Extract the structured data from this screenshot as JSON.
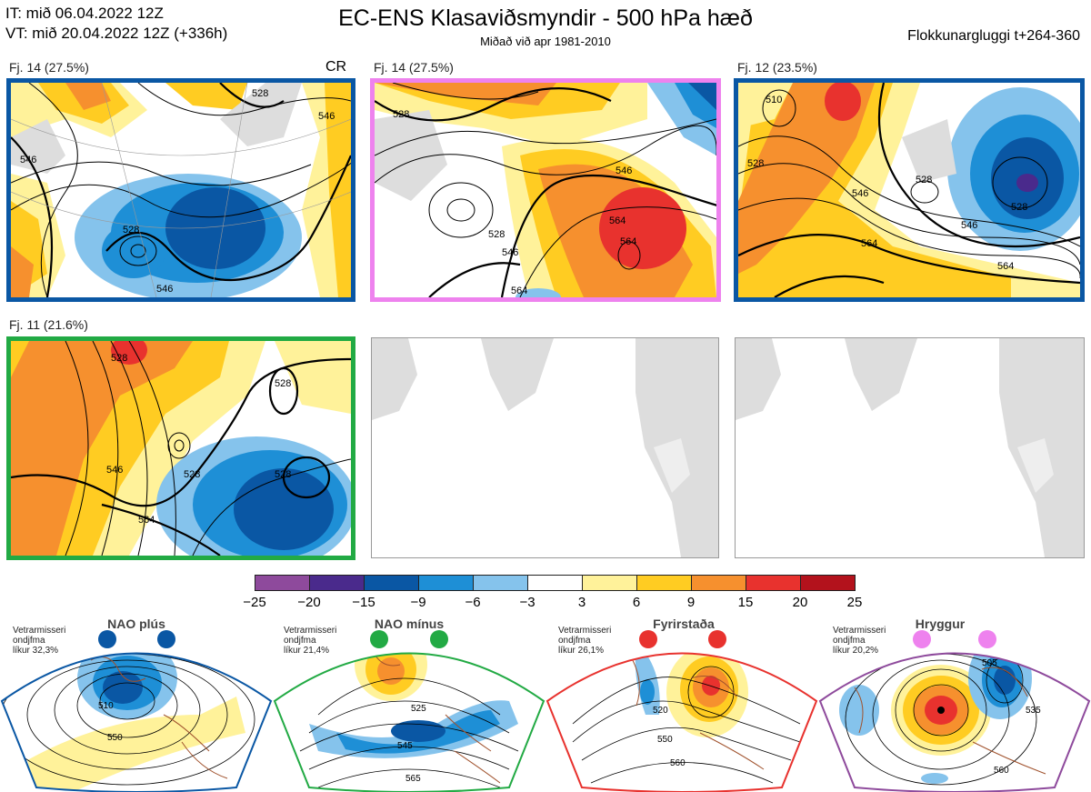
{
  "header": {
    "it_line": "IT: mið 06.04.2022 12Z",
    "vt_line": "VT: mið 20.04.2022 12Z  (+336h)",
    "title": "EC-ENS Klasaviðsmyndir - 500 hPa hæð",
    "subtitle": "Miðað við apr 1981-2010",
    "window": "Flokkunargluggi t+264-360"
  },
  "clusters": [
    {
      "label": "Fj. 14 (27.5%)",
      "border_color": "#0a57a4",
      "contours": [
        "528",
        "546",
        "546",
        "528",
        "546"
      ]
    },
    {
      "label": "Fj. 14 (27.5%)",
      "border_color": "#ee82ee",
      "contours": [
        "528",
        "528",
        "546",
        "564",
        "546",
        "564",
        "564"
      ]
    },
    {
      "label": "Fj. 12 (23.5%)",
      "border_color": "#0a57a4",
      "contours": [
        "510",
        "528",
        "528",
        "546",
        "528",
        "546",
        "564",
        "564"
      ]
    },
    {
      "label": "Fj. 11 (21.6%)",
      "border_color": "#22aa44",
      "contours": [
        "528",
        "528",
        "546",
        "528",
        "564",
        "528"
      ]
    }
  ],
  "cr_label": "CR",
  "colorbar": {
    "colors": [
      "#8e4a9c",
      "#4a2a8c",
      "#0a57a4",
      "#1e8fd6",
      "#85c3ec",
      "#ffffff",
      "#fff29a",
      "#ffcc22",
      "#f6902e",
      "#e8322e",
      "#b3121c"
    ],
    "ticks": [
      "−25",
      "−20",
      "−15",
      "−9",
      "−6",
      "−3",
      "3",
      "6",
      "9",
      "15",
      "20",
      "25"
    ]
  },
  "regimes": [
    {
      "name": "NAO plús",
      "note": [
        "Vetrarmisseri",
        "ondjfma",
        "líkur 32,3%"
      ],
      "color": "#0a57a4",
      "contours": [
        "510",
        "550"
      ]
    },
    {
      "name": "NAO mínus",
      "note": [
        "Vetrarmisseri",
        "ondjfma",
        "líkur 21,4%"
      ],
      "color": "#22aa44",
      "contours": [
        "525",
        "545",
        "565"
      ]
    },
    {
      "name": "Fyrirstaða",
      "note": [
        "Vetrarmisseri",
        "ondjfma",
        "líkur 26,1%"
      ],
      "color": "#e8322e",
      "contours": [
        "520",
        "550",
        "560"
      ]
    },
    {
      "name": "Hryggur",
      "note": [
        "Vetrarmisseri",
        "ondjfma",
        "líkur 20,2%"
      ],
      "color": "#ee82ee",
      "contours": [
        "505",
        "535",
        "560"
      ]
    }
  ]
}
